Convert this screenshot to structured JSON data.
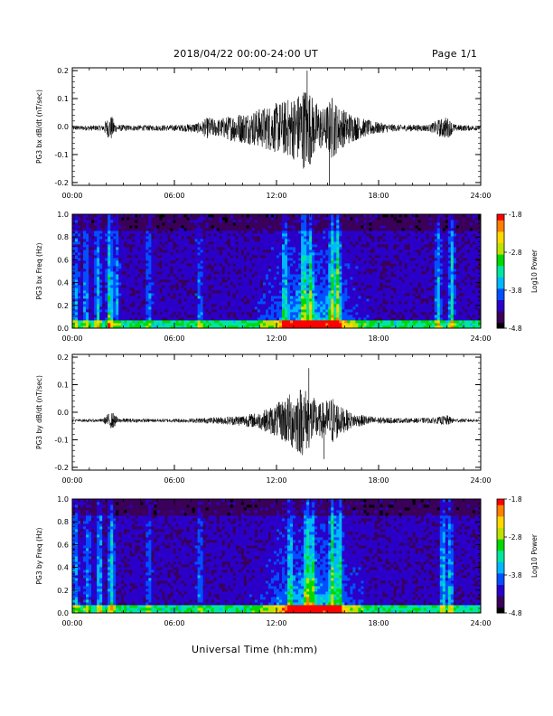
{
  "header": {
    "date_range": "2018/04/22  00:00-24:00 UT",
    "page": "Page 1/1"
  },
  "colors": {
    "line": "#000000",
    "colormap": [
      "#000000",
      "#3a005a",
      "#2a00c8",
      "#0050ff",
      "#00b8ff",
      "#00e6a0",
      "#00d800",
      "#c0e000",
      "#ffd800",
      "#ff8000",
      "#ff0000"
    ],
    "frame": "#000000"
  },
  "chart_data": [
    {
      "type": "line",
      "name": "bx-waveform",
      "ylabel": "PG3 bx dB/dt (nT/sec)",
      "xlim": [
        0,
        24
      ],
      "ylim": [
        -0.21,
        0.21
      ],
      "yticks": [
        -0.2,
        -0.1,
        0.0,
        0.1,
        0.2
      ],
      "yticklabels": [
        "-0.2",
        "-0.1",
        "0.0",
        "0.1",
        "0.2"
      ],
      "xticks": [
        0,
        6,
        12,
        18,
        24
      ],
      "xticklabels": [
        "00:00",
        "06:00",
        "12:00",
        "18:00",
        "24:00"
      ],
      "baseline": -0.005,
      "envelope": [
        [
          0,
          0.008
        ],
        [
          1.8,
          0.01
        ],
        [
          2.0,
          0.03
        ],
        [
          2.3,
          0.045
        ],
        [
          2.6,
          0.012
        ],
        [
          3.5,
          0.01
        ],
        [
          5,
          0.01
        ],
        [
          6.5,
          0.012
        ],
        [
          7.5,
          0.02
        ],
        [
          8.0,
          0.04
        ],
        [
          8.5,
          0.03
        ],
        [
          9.5,
          0.05
        ],
        [
          10.5,
          0.06
        ],
        [
          11.5,
          0.08
        ],
        [
          12.5,
          0.1
        ],
        [
          13.2,
          0.12
        ],
        [
          13.8,
          0.16
        ],
        [
          14.2,
          0.1
        ],
        [
          14.8,
          0.07
        ],
        [
          15.3,
          0.12
        ],
        [
          15.6,
          0.08
        ],
        [
          16.2,
          0.06
        ],
        [
          17,
          0.035
        ],
        [
          18,
          0.02
        ],
        [
          19,
          0.012
        ],
        [
          21,
          0.012
        ],
        [
          21.5,
          0.03
        ],
        [
          22.0,
          0.04
        ],
        [
          22.5,
          0.012
        ],
        [
          24,
          0.008
        ]
      ],
      "peaks": [
        [
          13.8,
          0.2
        ],
        [
          15.1,
          -0.21
        ]
      ]
    },
    {
      "type": "heatmap",
      "name": "bx-spectrogram",
      "ylabel": "PG3 bx Freq (Hz)",
      "xlim": [
        0,
        24
      ],
      "ylim": [
        0,
        1.0
      ],
      "yticks": [
        0.0,
        0.2,
        0.4,
        0.6,
        0.8,
        1.0
      ],
      "yticklabels": [
        "0.0",
        "0.2",
        "0.4",
        "0.6",
        "0.8",
        "1.0"
      ],
      "xticks": [
        0,
        6,
        12,
        18,
        24
      ],
      "xticklabels": [
        "00:00",
        "06:00",
        "12:00",
        "18:00",
        "24:00"
      ],
      "colorbar": {
        "label": "Log10 Power",
        "range": [
          -4.8,
          -1.8
        ],
        "ticks": [
          -1.8,
          -2.8,
          -3.8,
          -4.8
        ],
        "ticklabels": [
          "-1.8",
          "-2.8",
          "-3.8",
          "-4.8"
        ]
      },
      "bands": [
        [
          0.2,
          0.4
        ],
        [
          0.8,
          0.35
        ],
        [
          1.5,
          0.5
        ],
        [
          2.2,
          0.7
        ],
        [
          2.6,
          0.4
        ],
        [
          4.5,
          0.35
        ],
        [
          7.5,
          0.3
        ],
        [
          12.5,
          0.5
        ],
        [
          13.6,
          0.7
        ],
        [
          14.0,
          0.6
        ],
        [
          15.3,
          0.8
        ],
        [
          15.6,
          0.75
        ],
        [
          21.5,
          0.5
        ],
        [
          22.3,
          0.6
        ]
      ]
    },
    {
      "type": "line",
      "name": "by-waveform",
      "ylabel": "PG3 by dB/dt (nT/sec)",
      "xlim": [
        0,
        24
      ],
      "ylim": [
        -0.21,
        0.21
      ],
      "yticks": [
        -0.2,
        -0.1,
        0.0,
        0.1,
        0.2
      ],
      "yticklabels": [
        "-0.2",
        "-0.1",
        "0.0",
        "0.1",
        "0.2"
      ],
      "xticks": [
        0,
        6,
        12,
        18,
        24
      ],
      "xticklabels": [
        "00:00",
        "06:00",
        "12:00",
        "18:00",
        "24:00"
      ],
      "baseline": -0.03,
      "envelope": [
        [
          0,
          0.005
        ],
        [
          1.8,
          0.006
        ],
        [
          2.1,
          0.025
        ],
        [
          2.4,
          0.03
        ],
        [
          2.7,
          0.008
        ],
        [
          5,
          0.006
        ],
        [
          7,
          0.008
        ],
        [
          8.5,
          0.012
        ],
        [
          10,
          0.02
        ],
        [
          11,
          0.03
        ],
        [
          12,
          0.06
        ],
        [
          12.8,
          0.1
        ],
        [
          13.5,
          0.13
        ],
        [
          14.0,
          0.1
        ],
        [
          14.5,
          0.06
        ],
        [
          15.3,
          0.09
        ],
        [
          15.8,
          0.05
        ],
        [
          16.5,
          0.025
        ],
        [
          18,
          0.012
        ],
        [
          20,
          0.008
        ],
        [
          21.5,
          0.012
        ],
        [
          22.0,
          0.02
        ],
        [
          22.4,
          0.008
        ],
        [
          24,
          0.005
        ]
      ],
      "peaks": [
        [
          13.9,
          0.16
        ],
        [
          14.8,
          -0.17
        ]
      ]
    },
    {
      "type": "heatmap",
      "name": "by-spectrogram",
      "ylabel": "PG3 by Freq (Hz)",
      "xlim": [
        0,
        24
      ],
      "ylim": [
        0,
        1.0
      ],
      "yticks": [
        0.0,
        0.2,
        0.4,
        0.6,
        0.8,
        1.0
      ],
      "yticklabels": [
        "0.0",
        "0.2",
        "0.4",
        "0.6",
        "0.8",
        "1.0"
      ],
      "xticks": [
        0,
        6,
        12,
        18,
        24
      ],
      "xticklabels": [
        "00:00",
        "06:00",
        "12:00",
        "18:00",
        "24:00"
      ],
      "colorbar": {
        "label": "Log10 Power",
        "range": [
          -4.8,
          -1.8
        ],
        "ticks": [
          -1.8,
          -2.8,
          -3.8,
          -4.8
        ],
        "ticklabels": [
          "-1.8",
          "-2.8",
          "-3.8",
          "-4.8"
        ]
      },
      "bands": [
        [
          0.2,
          0.4
        ],
        [
          0.9,
          0.35
        ],
        [
          1.6,
          0.5
        ],
        [
          2.3,
          0.65
        ],
        [
          4.5,
          0.3
        ],
        [
          7.5,
          0.3
        ],
        [
          12.8,
          0.5
        ],
        [
          13.8,
          0.75
        ],
        [
          14.1,
          0.65
        ],
        [
          15.3,
          0.8
        ],
        [
          15.7,
          0.7
        ],
        [
          21.8,
          0.55
        ],
        [
          22.2,
          0.5
        ]
      ]
    }
  ],
  "footer": {
    "xlabel": "Universal Time (hh:mm)"
  }
}
